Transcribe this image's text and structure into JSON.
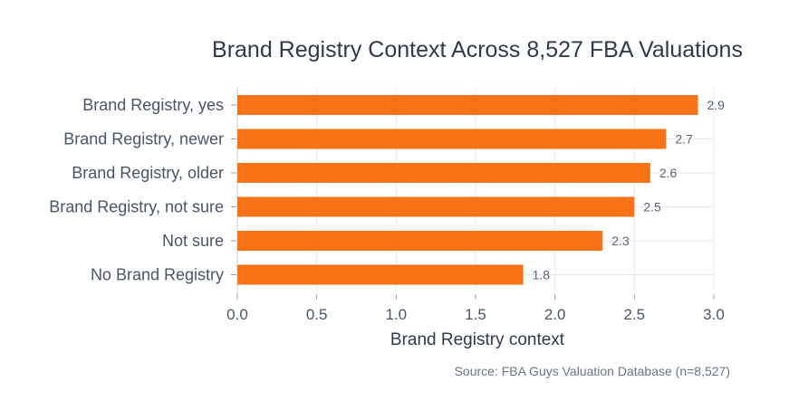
{
  "chart_data": {
    "type": "bar",
    "orientation": "horizontal",
    "title": "Brand Registry Context Across 8,527 FBA Valuations",
    "xlabel": "Brand Registry context",
    "ylabel": "",
    "categories": [
      "Brand Registry, yes",
      "Brand Registry, newer",
      "Brand Registry, older",
      "Brand Registry, not sure",
      "Not sure",
      "No Brand Registry"
    ],
    "values": [
      2.9,
      2.7,
      2.6,
      2.5,
      2.3,
      1.8
    ],
    "data_labels": [
      "2.9",
      "2.7",
      "2.6",
      "2.5",
      "2.3",
      "1.8"
    ],
    "xlim": [
      0,
      3.0
    ],
    "x_ticks": [
      "0.0",
      "0.5",
      "1.0",
      "1.5",
      "2.0",
      "2.5",
      "3.0"
    ],
    "grid": true,
    "bar_color": "#f97316",
    "source": "Source: FBA Guys Valuation Database (n=8,527)"
  }
}
